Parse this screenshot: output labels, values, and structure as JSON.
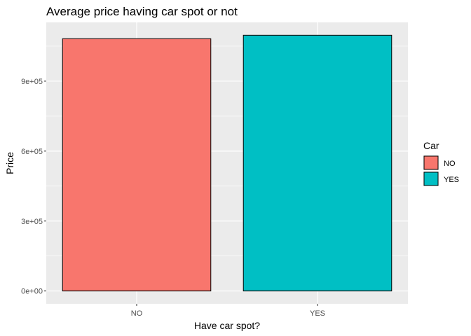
{
  "chart_data": {
    "type": "bar",
    "title": "Average price having car spot or not",
    "xlabel": "Have car spot?",
    "ylabel": "Price",
    "categories": [
      "NO",
      "YES"
    ],
    "values": [
      1082000,
      1097000
    ],
    "colors": [
      "#F8766D",
      "#00BFC4"
    ],
    "ylim": [
      -55000,
      1152000
    ],
    "yticks": [
      0,
      300000,
      600000,
      900000
    ],
    "ytick_labels": [
      "0e+00",
      "3e+05",
      "6e+05",
      "9e+05"
    ],
    "grid": true,
    "legend": {
      "title": "Car",
      "position": "right",
      "entries": [
        {
          "label": "NO",
          "color": "#F8766D"
        },
        {
          "label": "YES",
          "color": "#00BFC4"
        }
      ]
    }
  }
}
